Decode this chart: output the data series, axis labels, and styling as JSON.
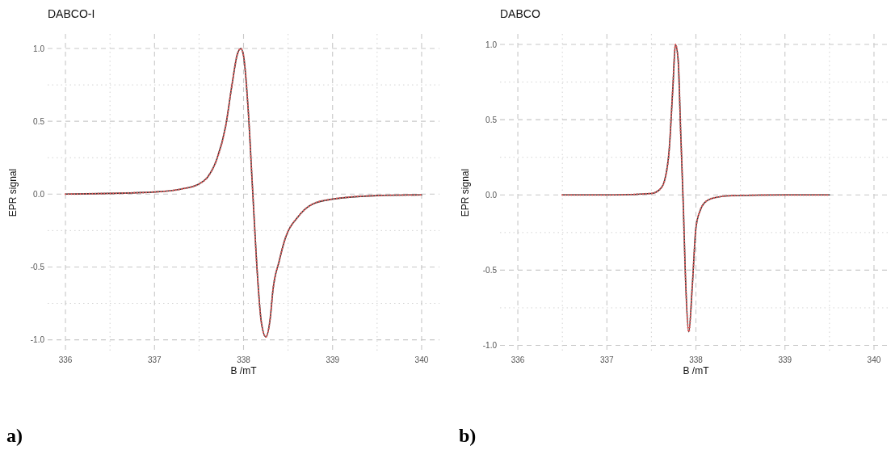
{
  "chart_data": [
    {
      "type": "line",
      "title": "DABCO-I",
      "xlabel": "B /mT",
      "ylabel": "EPR signal",
      "annotations": [
        "a)"
      ],
      "grid": true,
      "xlim": [
        335.8,
        340.2
      ],
      "ylim": [
        -1.08,
        1.1
      ],
      "xticks": [
        336,
        {
          "value": 336.5,
          "label": null
        },
        337,
        {
          "value": 337.5,
          "label": null
        },
        338,
        {
          "value": 338.5,
          "label": null
        },
        339,
        {
          "value": 339.5,
          "label": null
        },
        340
      ],
      "yticks": [
        {
          "value": -1,
          "label": "-1.0"
        },
        {
          "value": -0.75,
          "label": null
        },
        {
          "value": -0.5,
          "label": "-0.5"
        },
        {
          "value": -0.25,
          "label": null
        },
        {
          "value": 0,
          "label": "0.0"
        },
        {
          "value": 0.25,
          "label": null
        },
        {
          "value": 0.5,
          "label": "0.5"
        },
        {
          "value": 0.75,
          "label": null
        },
        {
          "value": 1,
          "label": "1.0"
        }
      ],
      "x": [
        336,
        336.5,
        337,
        337.3,
        337.5,
        337.6,
        337.7,
        337.8,
        337.87,
        337.93,
        337.97,
        338,
        338.05,
        338.1,
        338.15,
        338.2,
        338.25,
        338.3,
        338.33,
        338.4,
        338.46,
        338.62,
        338.77,
        338.99,
        339.5,
        340
      ],
      "series": [
        {
          "color": "#333333",
          "line_style": "solid",
          "values": [
            0,
            0.005,
            0.015,
            0.035,
            0.07,
            0.12,
            0.24,
            0.47,
            0.75,
            0.96,
            1,
            0.95,
            0.6,
            0.05,
            -0.5,
            -0.88,
            -0.98,
            -0.85,
            -0.66,
            -0.46,
            -0.32,
            -0.15,
            -0.07,
            -0.035,
            -0.01,
            -0.005
          ]
        },
        {
          "color": "#e05a5a",
          "line_style": "dotted",
          "values": [
            0,
            0.005,
            0.015,
            0.035,
            0.07,
            0.12,
            0.24,
            0.47,
            0.75,
            0.96,
            1,
            0.95,
            0.6,
            0.05,
            -0.5,
            -0.88,
            -0.98,
            -0.85,
            -0.66,
            -0.46,
            -0.32,
            -0.15,
            -0.07,
            -0.035,
            -0.01,
            -0.005
          ]
        }
      ]
    },
    {
      "type": "line",
      "title": "DABCO",
      "xlabel": "B /mT",
      "ylabel": "EPR signal",
      "annotations": [
        "b)"
      ],
      "grid": true,
      "xlim": [
        335.8,
        340.2
      ],
      "ylim": [
        -1.04,
        1.07
      ],
      "xticks": [
        336,
        {
          "value": 336.5,
          "label": null
        },
        337,
        {
          "value": 337.5,
          "label": null
        },
        338,
        {
          "value": 338.5,
          "label": null
        },
        339,
        {
          "value": 339.5,
          "label": null
        },
        340
      ],
      "yticks": [
        {
          "value": -1,
          "label": "-1.0"
        },
        {
          "value": -0.75,
          "label": null
        },
        {
          "value": -0.5,
          "label": "-0.5"
        },
        {
          "value": -0.25,
          "label": null
        },
        {
          "value": 0,
          "label": "0.0"
        },
        {
          "value": 0.25,
          "label": null
        },
        {
          "value": 0.5,
          "label": "0.5"
        },
        {
          "value": 0.75,
          "label": null
        },
        {
          "value": 1,
          "label": "1.0"
        }
      ],
      "x": [
        336.5,
        337,
        337.5,
        337.6,
        337.65,
        337.7,
        337.74,
        337.77,
        337.8,
        337.83,
        337.86,
        337.88,
        337.92,
        337.96,
        338,
        338.05,
        338.1,
        338.2,
        338.4,
        339,
        339.5
      ],
      "series": [
        {
          "color": "#333333",
          "line_style": "solid",
          "values": [
            0,
            0,
            0.01,
            0.04,
            0.1,
            0.3,
            0.7,
            1,
            0.9,
            0.4,
            -0.1,
            -0.5,
            -0.91,
            -0.6,
            -0.22,
            -0.1,
            -0.05,
            -0.02,
            -0.005,
            0,
            0
          ]
        },
        {
          "color": "#e05a5a",
          "line_style": "dotted",
          "values": [
            0,
            0,
            0.01,
            0.04,
            0.1,
            0.3,
            0.7,
            1,
            0.9,
            0.4,
            -0.1,
            -0.5,
            -0.91,
            -0.6,
            -0.22,
            -0.1,
            -0.05,
            -0.02,
            -0.005,
            0,
            0
          ]
        }
      ]
    }
  ]
}
